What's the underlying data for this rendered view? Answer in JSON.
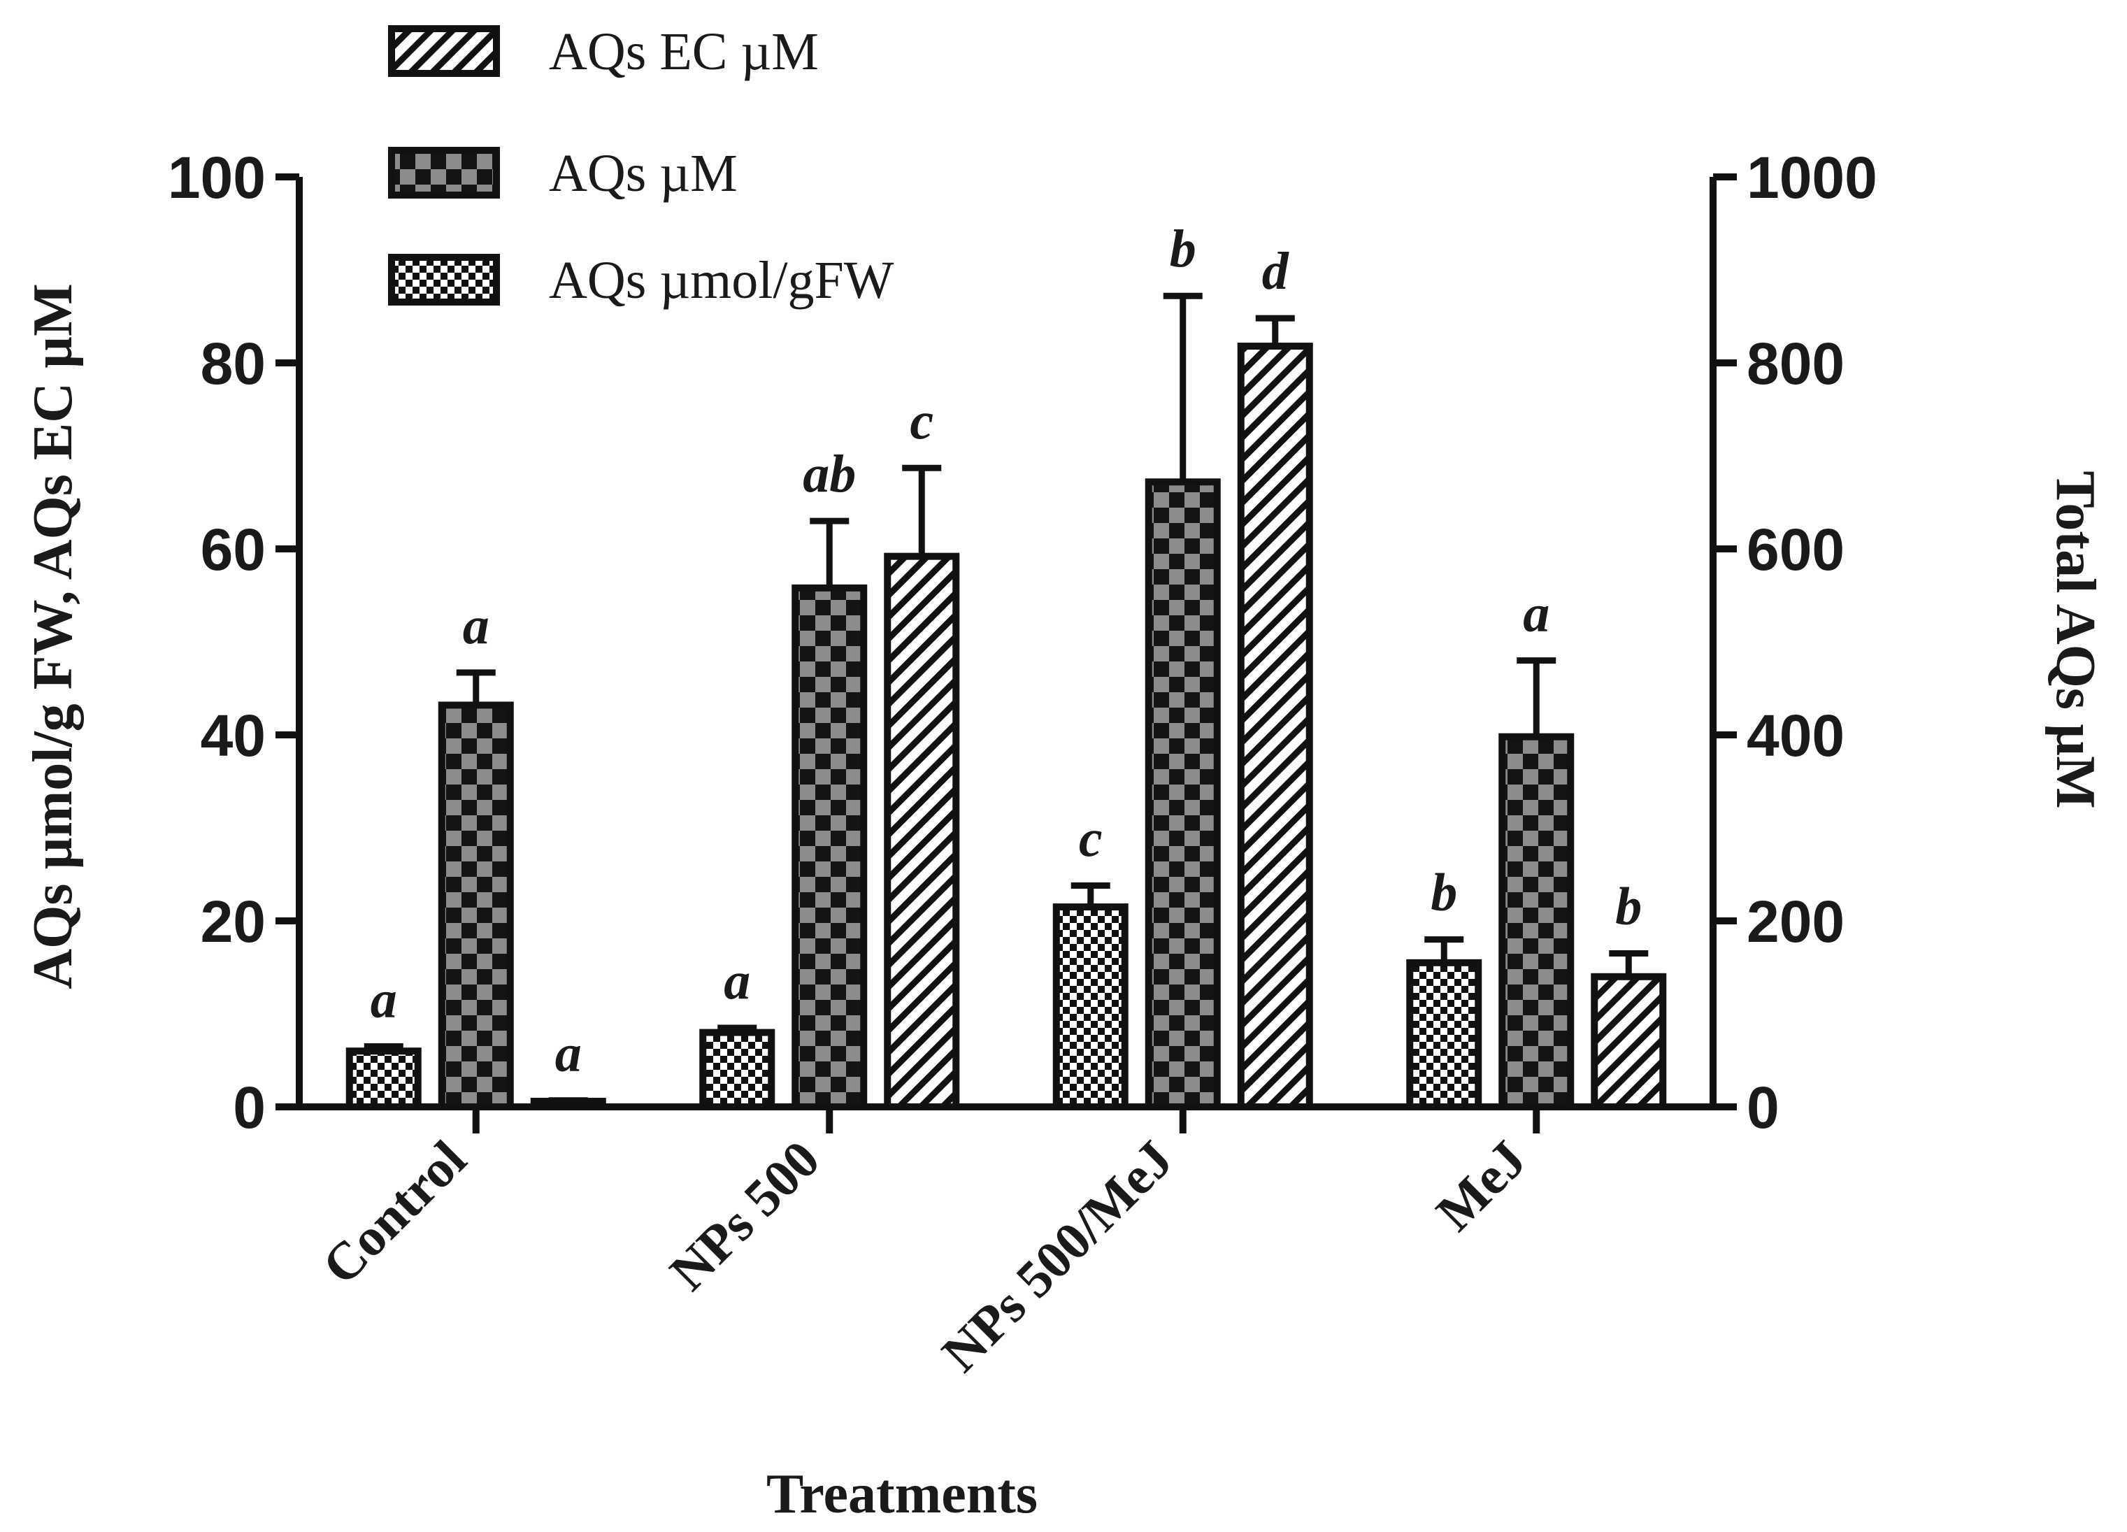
{
  "chart_data": {
    "type": "bar",
    "categories": [
      "Control",
      "NPs 500",
      "NPs 500/MeJ",
      "MeJ"
    ],
    "xlabel": "Treatments",
    "ylabel_left": "AQs µmol/g FW, AQs EC  µM",
    "ylabel_right": "Total AQs µM",
    "ylim_left": [
      0,
      100
    ],
    "ylim_right": [
      0,
      1000
    ],
    "yticks_left": [
      "0",
      "20",
      "40",
      "60",
      "80",
      "100"
    ],
    "yticks_right": [
      "0",
      "200",
      "400",
      "600",
      "800",
      "1000"
    ],
    "series": [
      {
        "name": "AQs µmol/gFW",
        "axis": "left",
        "pattern": "fine-check",
        "values": [
          6,
          8,
          21.5,
          15.5
        ],
        "errors": [
          0.5,
          0.5,
          2.3,
          2.5
        ],
        "letters": [
          "a",
          "a",
          "c",
          "b"
        ]
      },
      {
        "name": "AQs µM",
        "axis": "right",
        "pattern": "coarse-check",
        "values": [
          432,
          558,
          672,
          398
        ],
        "errors": [
          35,
          72,
          200,
          82
        ],
        "letters": [
          "a",
          "ab",
          "b",
          "a"
        ]
      },
      {
        "name": "AQs EC µM",
        "axis": "left",
        "pattern": "hatch",
        "values": [
          0.6,
          59.2,
          81.8,
          14
        ],
        "errors": [
          0.1,
          9.5,
          3,
          2.5
        ],
        "letters": [
          "a",
          "c",
          "d",
          "b"
        ]
      }
    ],
    "legend": [
      "AQs EC µM",
      "AQs µM",
      "AQs µmol/gFW"
    ],
    "legend_position": "top-left"
  }
}
